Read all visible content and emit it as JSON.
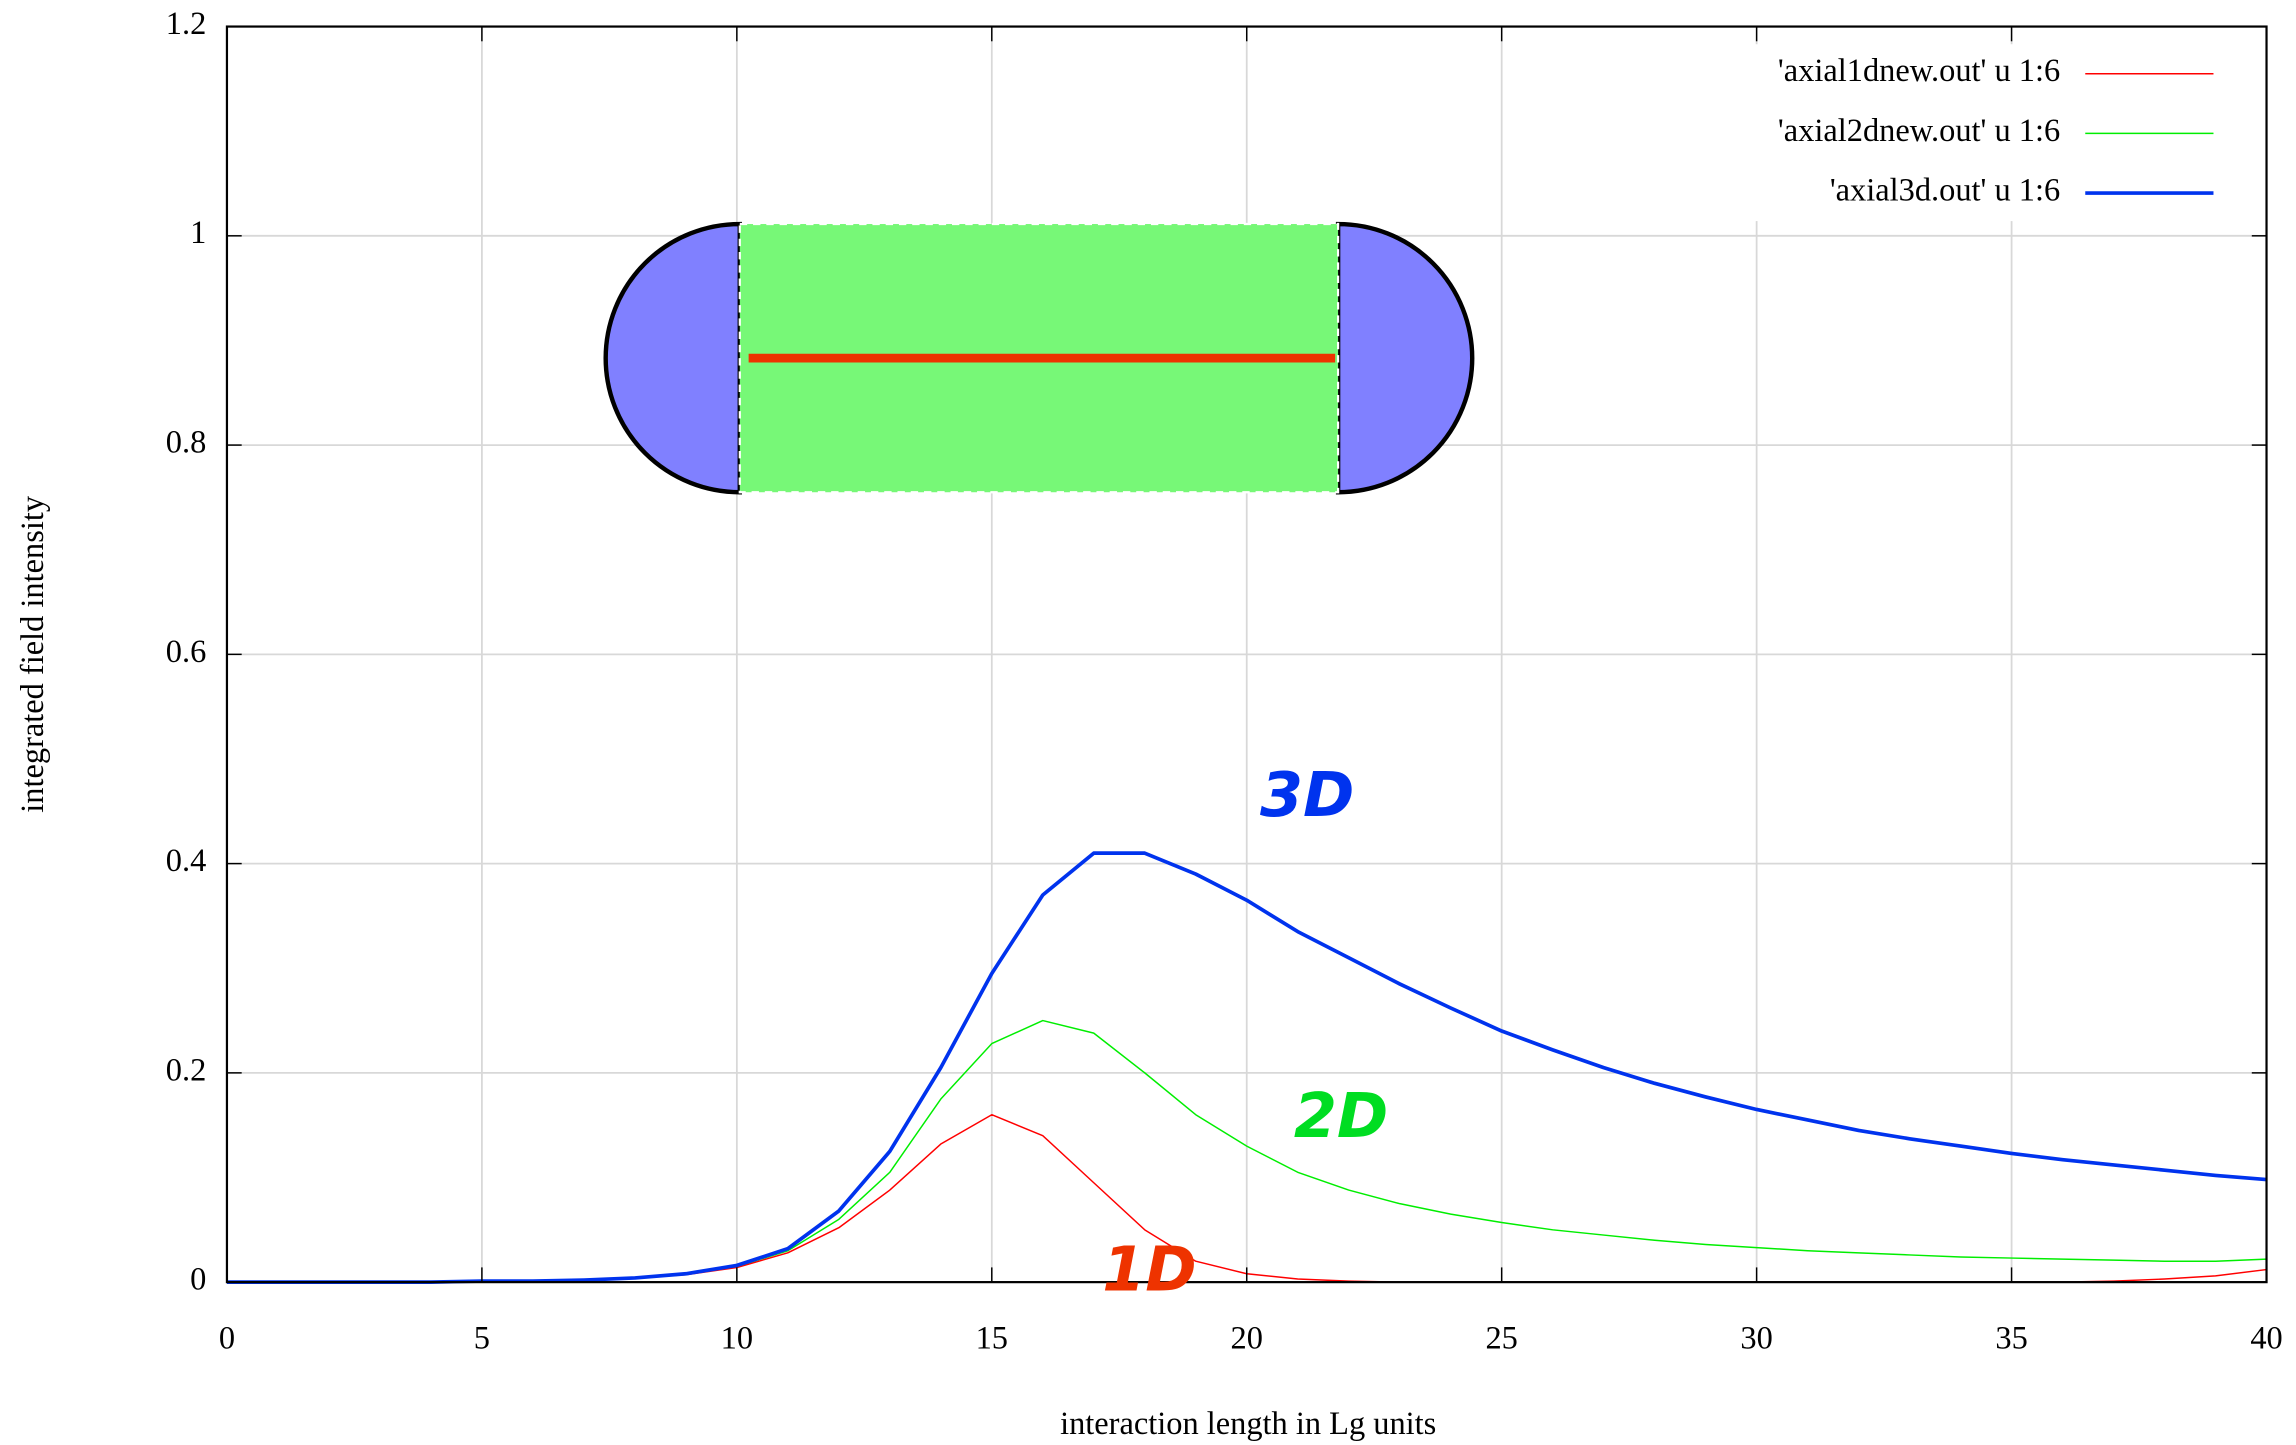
{
  "chart_data": {
    "type": "line",
    "xlabel": "interaction length in Lg units",
    "ylabel": "integrated field intensity",
    "x": [
      0,
      1,
      2,
      3,
      4,
      5,
      6,
      7,
      8,
      9,
      10,
      11,
      12,
      13,
      14,
      15,
      16,
      17,
      18,
      19,
      20,
      21,
      22,
      23,
      24,
      25,
      26,
      27,
      28,
      29,
      30,
      31,
      32,
      33,
      34,
      35,
      36,
      37,
      38,
      39,
      40
    ],
    "series": [
      {
        "name": "'axial1dnew.out' u 1:6",
        "color": "#ff0000",
        "width": 1,
        "values": [
          0,
          0,
          0,
          0,
          0,
          0.001,
          0.001,
          0.002,
          0.004,
          0.007,
          0.014,
          0.028,
          0.052,
          0.088,
          0.132,
          0.16,
          0.14,
          0.095,
          0.05,
          0.02,
          0.008,
          0.003,
          0.001,
          0,
          0,
          0,
          0,
          0,
          0,
          0,
          0,
          0,
          0,
          0,
          0,
          0,
          0,
          0.001,
          0.003,
          0.006,
          0.012
        ]
      },
      {
        "name": "'axial2dnew.out' u 1:6",
        "color": "#00ee00",
        "width": 1,
        "values": [
          0,
          0,
          0,
          0,
          0,
          0.001,
          0.001,
          0.002,
          0.004,
          0.008,
          0.015,
          0.03,
          0.06,
          0.105,
          0.175,
          0.228,
          0.25,
          0.238,
          0.2,
          0.16,
          0.13,
          0.105,
          0.088,
          0.075,
          0.065,
          0.057,
          0.05,
          0.045,
          0.04,
          0.036,
          0.033,
          0.03,
          0.028,
          0.026,
          0.024,
          0.023,
          0.022,
          0.021,
          0.02,
          0.02,
          0.022
        ]
      },
      {
        "name": "'axial3d.out' u 1:6",
        "color": "#0033ee",
        "width": 2.5,
        "values": [
          0,
          0,
          0,
          0,
          0,
          0.001,
          0.001,
          0.002,
          0.004,
          0.008,
          0.016,
          0.032,
          0.068,
          0.125,
          0.205,
          0.295,
          0.37,
          0.41,
          0.41,
          0.39,
          0.365,
          0.335,
          0.31,
          0.285,
          0.262,
          0.24,
          0.222,
          0.205,
          0.19,
          0.177,
          0.165,
          0.155,
          0.145,
          0.137,
          0.13,
          0.123,
          0.117,
          0.112,
          0.107,
          0.102,
          0.098
        ]
      }
    ],
    "annotations": [
      "3D",
      "2D",
      "1D"
    ],
    "xlim": [
      0,
      40
    ],
    "xticks": [
      0,
      5,
      10,
      15,
      20,
      25,
      30,
      35,
      40
    ],
    "ylim": [
      0,
      1.2
    ],
    "yticks": [
      0,
      0.2,
      0.4,
      0.6,
      0.8,
      1,
      1.2
    ],
    "grid": true,
    "legend": "top-right"
  }
}
